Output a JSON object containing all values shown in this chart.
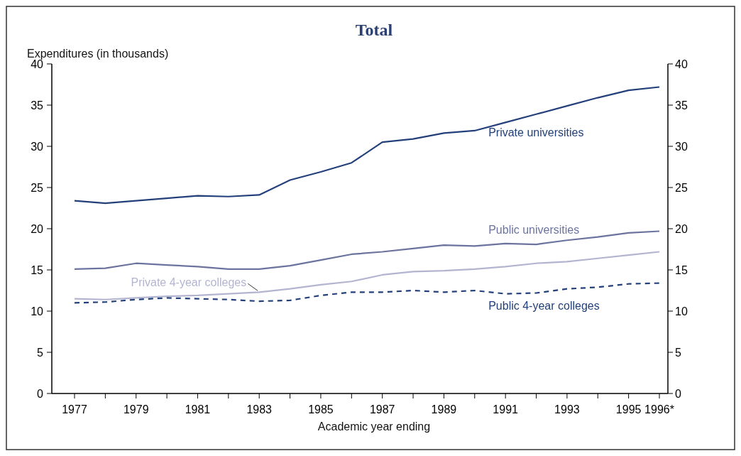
{
  "chart_data": {
    "type": "line",
    "title": "Total",
    "ylabel": "Expenditures (in thousands)",
    "xlabel": "Academic year ending",
    "categories": [
      "1977",
      null,
      "1979",
      null,
      "1981",
      null,
      "1983",
      null,
      "1985",
      null,
      "1987",
      null,
      "1989",
      null,
      "1991",
      null,
      "1993",
      null,
      "1995",
      "1996*"
    ],
    "ylim": [
      0,
      40
    ],
    "yticks": [
      0,
      5,
      10,
      15,
      20,
      25,
      30,
      35,
      40
    ],
    "y2lim": [
      0,
      40
    ],
    "y2ticks": [
      0,
      5,
      10,
      15,
      20,
      25,
      30,
      35,
      40
    ],
    "grid": false,
    "marker": "none",
    "series": [
      {
        "name": "Private universities",
        "color": "#24407a",
        "line_style": "solid",
        "values": [
          23.4,
          23.1,
          23.4,
          23.7,
          24.0,
          23.9,
          24.1,
          25.9,
          26.9,
          28.0,
          30.5,
          30.9,
          31.6,
          31.9,
          32.9,
          33.9,
          34.9,
          35.9,
          36.8,
          37.2
        ]
      },
      {
        "name": "Public universities",
        "color": "#6b739e",
        "line_style": "solid",
        "values": [
          15.1,
          15.2,
          15.8,
          15.6,
          15.4,
          15.1,
          15.1,
          15.5,
          16.2,
          16.9,
          17.2,
          17.6,
          18.0,
          17.9,
          18.2,
          18.1,
          18.6,
          19.0,
          19.5,
          19.7
        ]
      },
      {
        "name": "Private 4-year colleges",
        "color": "#b3b5d0",
        "line_style": "solid",
        "values": [
          11.5,
          11.4,
          11.6,
          11.8,
          11.9,
          12.1,
          12.3,
          12.7,
          13.2,
          13.6,
          14.4,
          14.8,
          14.9,
          15.1,
          15.4,
          15.8,
          16.0,
          16.4,
          16.8,
          17.2
        ]
      },
      {
        "name": "Public 4-year colleges",
        "color": "#24407a",
        "line_style": "dashed",
        "values": [
          11.0,
          11.1,
          11.4,
          11.6,
          11.5,
          11.4,
          11.2,
          11.3,
          11.9,
          12.3,
          12.3,
          12.5,
          12.3,
          12.5,
          12.1,
          12.2,
          12.7,
          12.9,
          13.3,
          13.4
        ]
      }
    ]
  }
}
